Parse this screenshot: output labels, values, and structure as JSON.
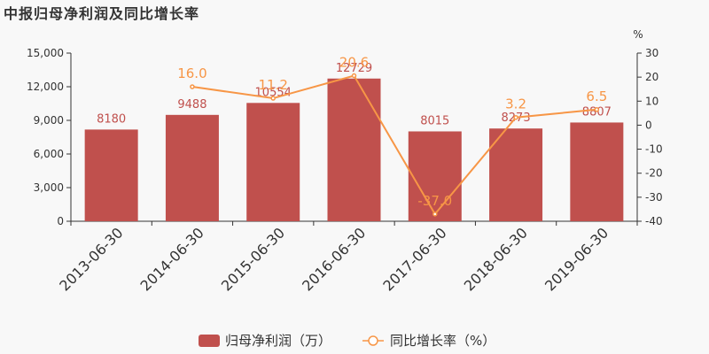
{
  "title": "中报归母净利润及同比增长率",
  "chart_data": {
    "type": "bar+line",
    "categories": [
      "2013-06-30",
      "2014-06-30",
      "2015-06-30",
      "2016-06-30",
      "2017-06-30",
      "2018-06-30",
      "2019-06-30"
    ],
    "series": [
      {
        "name": "归母净利润（万）",
        "type": "bar",
        "axis": "left",
        "values": [
          8180,
          9488,
          10554,
          12729,
          8015,
          8273,
          8807
        ],
        "labels": [
          "8180",
          "9488",
          "10554",
          "12729",
          "8015",
          "8273",
          "8807"
        ],
        "color": "#c0504d"
      },
      {
        "name": "同比增长率（%）",
        "type": "line",
        "axis": "right",
        "values": [
          null,
          16.0,
          11.2,
          20.6,
          -37.0,
          3.2,
          6.5
        ],
        "labels": [
          "",
          "16.0",
          "11.2",
          "20.6",
          "-37.0",
          "3.2",
          "6.5"
        ],
        "color": "#f79646"
      }
    ],
    "left_axis": {
      "min": 0,
      "max": 15000,
      "ticks": [
        "0",
        "3,000",
        "6,000",
        "9,000",
        "12,000",
        "15,000"
      ],
      "tick_values": [
        0,
        3000,
        6000,
        9000,
        12000,
        15000
      ]
    },
    "right_axis": {
      "min": -40,
      "max": 30,
      "unit": "%",
      "ticks": [
        "-40",
        "-30",
        "-20",
        "-10",
        "0",
        "10",
        "20",
        "30"
      ],
      "tick_values": [
        -40,
        -30,
        -20,
        -10,
        0,
        10,
        20,
        30
      ]
    },
    "grid": false,
    "legend_position": "bottom-center"
  },
  "legend": {
    "bar_label": "归母净利润（万）",
    "line_label": "同比增长率（%）"
  }
}
